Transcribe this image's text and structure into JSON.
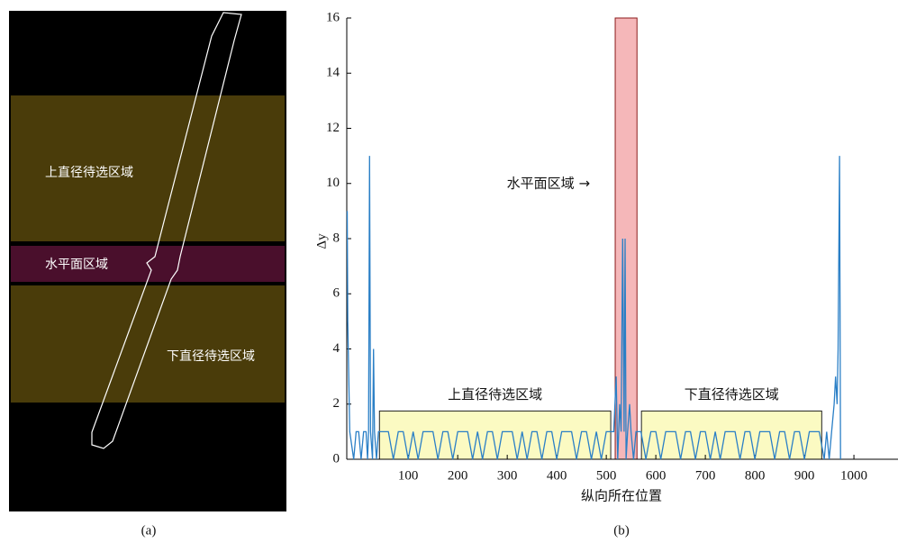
{
  "panel_a": {
    "labels": [
      "上直径待选区域",
      "水平面区域",
      "下直径待选区域"
    ],
    "caption": "(a)"
  },
  "chart_data": {
    "type": "line",
    "caption": "(b)",
    "x_label": "纵向所在位置",
    "y_label": "Δy",
    "annotation": "水平面区域 →",
    "color": "#2a7fc6",
    "x": [
      -23,
      -22,
      -20,
      -18,
      -10,
      -5,
      0,
      5,
      10,
      15,
      18,
      20,
      22,
      24,
      28,
      30,
      32,
      36,
      40,
      50,
      60,
      70,
      80,
      90,
      100,
      110,
      120,
      130,
      140,
      150,
      160,
      170,
      180,
      190,
      200,
      210,
      220,
      230,
      240,
      250,
      260,
      270,
      280,
      290,
      300,
      310,
      320,
      330,
      340,
      350,
      360,
      370,
      380,
      390,
      400,
      410,
      420,
      430,
      440,
      450,
      460,
      470,
      480,
      490,
      500,
      510,
      515,
      520,
      523,
      527,
      530,
      533,
      536,
      538,
      540,
      543,
      547,
      550,
      555,
      560,
      570,
      580,
      590,
      600,
      610,
      620,
      630,
      640,
      650,
      660,
      670,
      680,
      690,
      700,
      710,
      720,
      730,
      740,
      750,
      760,
      770,
      780,
      790,
      800,
      810,
      820,
      830,
      840,
      850,
      860,
      870,
      880,
      890,
      900,
      910,
      920,
      930,
      940,
      945,
      950,
      955,
      960,
      963,
      966,
      968,
      971,
      973
    ],
    "values": [
      9,
      5,
      3,
      1,
      0,
      1,
      1,
      0,
      1,
      1,
      0,
      1,
      11,
      1,
      0,
      4,
      1,
      0,
      1,
      1,
      1,
      0,
      1,
      1,
      0,
      1,
      0,
      1,
      1,
      1,
      0,
      1,
      1,
      0,
      1,
      1,
      1,
      0,
      1,
      0,
      1,
      1,
      0,
      1,
      1,
      1,
      0,
      1,
      0,
      1,
      1,
      0,
      1,
      1,
      0,
      1,
      1,
      1,
      0,
      1,
      1,
      0,
      1,
      0,
      1,
      1,
      1,
      3,
      0,
      2,
      1,
      8,
      1,
      8,
      0,
      1,
      2,
      1,
      0,
      1,
      1,
      0,
      1,
      1,
      0,
      1,
      1,
      1,
      0,
      1,
      1,
      0,
      1,
      1,
      0,
      1,
      0,
      1,
      1,
      1,
      0,
      1,
      1,
      0,
      1,
      1,
      1,
      0,
      1,
      1,
      0,
      1,
      1,
      0,
      1,
      1,
      1,
      0,
      1,
      0,
      1,
      2,
      3,
      2,
      4,
      11,
      0
    ],
    "regions": [
      {
        "name": "上直径待选区域",
        "x": [
          42,
          509
        ],
        "y": [
          0,
          1.75
        ],
        "color": "#fbfac2",
        "edge": "#222222"
      },
      {
        "x": [
          518,
          562
        ],
        "y": [
          0,
          16
        ],
        "color": "#f5b7b9",
        "edge": "#8b1a1a"
      },
      {
        "name": "下直径待选区域",
        "x": [
          571,
          935
        ],
        "y": [
          0,
          1.75
        ],
        "color": "#fbfac2",
        "edge": "#222222"
      }
    ],
    "xlim": [
      -24,
      1089
    ],
    "ylim": [
      0,
      16
    ],
    "xticks": [
      100,
      200,
      300,
      400,
      500,
      600,
      700,
      800,
      900,
      1000
    ],
    "yticks": [
      0,
      2,
      4,
      6,
      8,
      10,
      12,
      14,
      16
    ]
  }
}
